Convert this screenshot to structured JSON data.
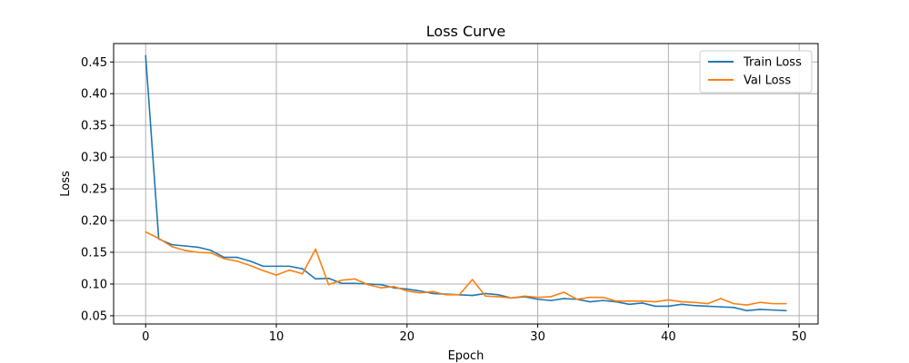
{
  "chart_data": {
    "type": "line",
    "title": "Loss Curve",
    "xlabel": "Epoch",
    "ylabel": "Loss",
    "xlim": [
      -2.45,
      51.45
    ],
    "ylim": [
      0.037,
      0.479
    ],
    "xticks": [
      0,
      10,
      20,
      30,
      40,
      50
    ],
    "yticks": [
      0.05,
      0.1,
      0.15,
      0.2,
      0.25,
      0.3,
      0.35,
      0.4,
      0.45
    ],
    "grid": true,
    "legend_position": "top-right",
    "x": [
      0,
      1,
      2,
      3,
      4,
      5,
      6,
      7,
      8,
      9,
      10,
      11,
      12,
      13,
      14,
      15,
      16,
      17,
      18,
      19,
      20,
      21,
      22,
      23,
      24,
      25,
      26,
      27,
      28,
      29,
      30,
      31,
      32,
      33,
      34,
      35,
      36,
      37,
      38,
      39,
      40,
      41,
      42,
      43,
      44,
      45,
      46,
      47,
      48,
      49
    ],
    "series": [
      {
        "name": "Train Loss",
        "color": "#1f77b4",
        "values": [
          0.46,
          0.171,
          0.162,
          0.16,
          0.158,
          0.153,
          0.142,
          0.142,
          0.136,
          0.128,
          0.128,
          0.128,
          0.124,
          0.108,
          0.109,
          0.101,
          0.101,
          0.1,
          0.099,
          0.094,
          0.092,
          0.089,
          0.085,
          0.084,
          0.083,
          0.082,
          0.085,
          0.083,
          0.078,
          0.08,
          0.076,
          0.074,
          0.077,
          0.076,
          0.072,
          0.074,
          0.072,
          0.068,
          0.07,
          0.065,
          0.065,
          0.068,
          0.066,
          0.065,
          0.064,
          0.063,
          0.058,
          0.06,
          0.059,
          0.058
        ]
      },
      {
        "name": "Val Loss",
        "color": "#ff7f0e",
        "values": [
          0.182,
          0.172,
          0.159,
          0.153,
          0.15,
          0.149,
          0.14,
          0.136,
          0.129,
          0.121,
          0.114,
          0.122,
          0.116,
          0.155,
          0.099,
          0.106,
          0.108,
          0.099,
          0.094,
          0.096,
          0.089,
          0.086,
          0.088,
          0.083,
          0.083,
          0.107,
          0.081,
          0.08,
          0.078,
          0.081,
          0.079,
          0.08,
          0.087,
          0.076,
          0.079,
          0.079,
          0.073,
          0.073,
          0.073,
          0.072,
          0.075,
          0.072,
          0.071,
          0.069,
          0.077,
          0.069,
          0.067,
          0.071,
          0.069,
          0.069
        ]
      }
    ]
  }
}
